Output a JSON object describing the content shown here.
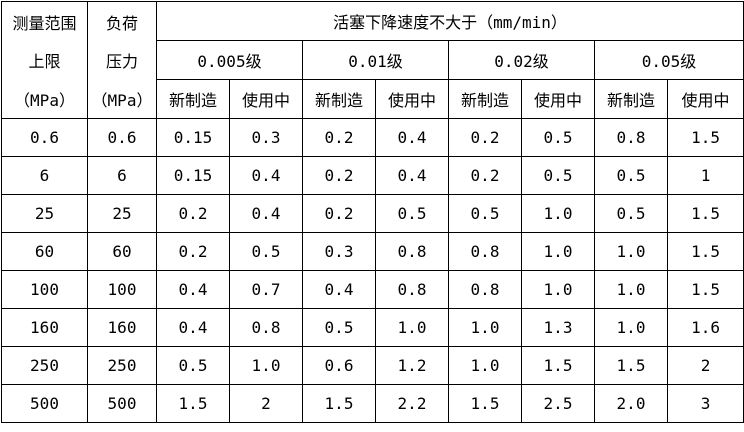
{
  "table": {
    "head_col0": [
      "测量范围",
      "上限",
      "（MPa）"
    ],
    "head_col1": [
      "负荷",
      "压力",
      "（MPa）"
    ],
    "span_title": "活塞下降速度不大于（mm/min）",
    "grades": [
      "0.005级",
      "0.01级",
      "0.02级",
      "0.05级"
    ],
    "sub_headers": [
      "新制造",
      "使用中",
      "新制造",
      "使用中",
      "新制造",
      "使用中",
      "新制造",
      "使用中"
    ],
    "rows": [
      [
        "0.6",
        "0.6",
        "0.15",
        "0.3",
        "0.2",
        "0.4",
        "0.2",
        "0.5",
        "0.8",
        "1.5"
      ],
      [
        "6",
        "6",
        "0.15",
        "0.4",
        "0.2",
        "0.4",
        "0.2",
        "0.5",
        "0.5",
        "1"
      ],
      [
        "25",
        "25",
        "0.2",
        "0.4",
        "0.2",
        "0.5",
        "0.5",
        "1.0",
        "0.5",
        "1.5"
      ],
      [
        "60",
        "60",
        "0.2",
        "0.5",
        "0.3",
        "0.8",
        "0.8",
        "1.0",
        "1.0",
        "1.5"
      ],
      [
        "100",
        "100",
        "0.4",
        "0.7",
        "0.4",
        "0.8",
        "0.8",
        "1.0",
        "1.0",
        "1.5"
      ],
      [
        "160",
        "160",
        "0.4",
        "0.8",
        "0.5",
        "1.0",
        "1.0",
        "1.3",
        "1.0",
        "1.6"
      ],
      [
        "250",
        "250",
        "0.5",
        "1.0",
        "0.6",
        "1.2",
        "1.0",
        "1.5",
        "1.5",
        "2"
      ],
      [
        "500",
        "500",
        "1.5",
        "2",
        "1.5",
        "2.2",
        "1.5",
        "2.5",
        "2.0",
        "3"
      ]
    ]
  }
}
